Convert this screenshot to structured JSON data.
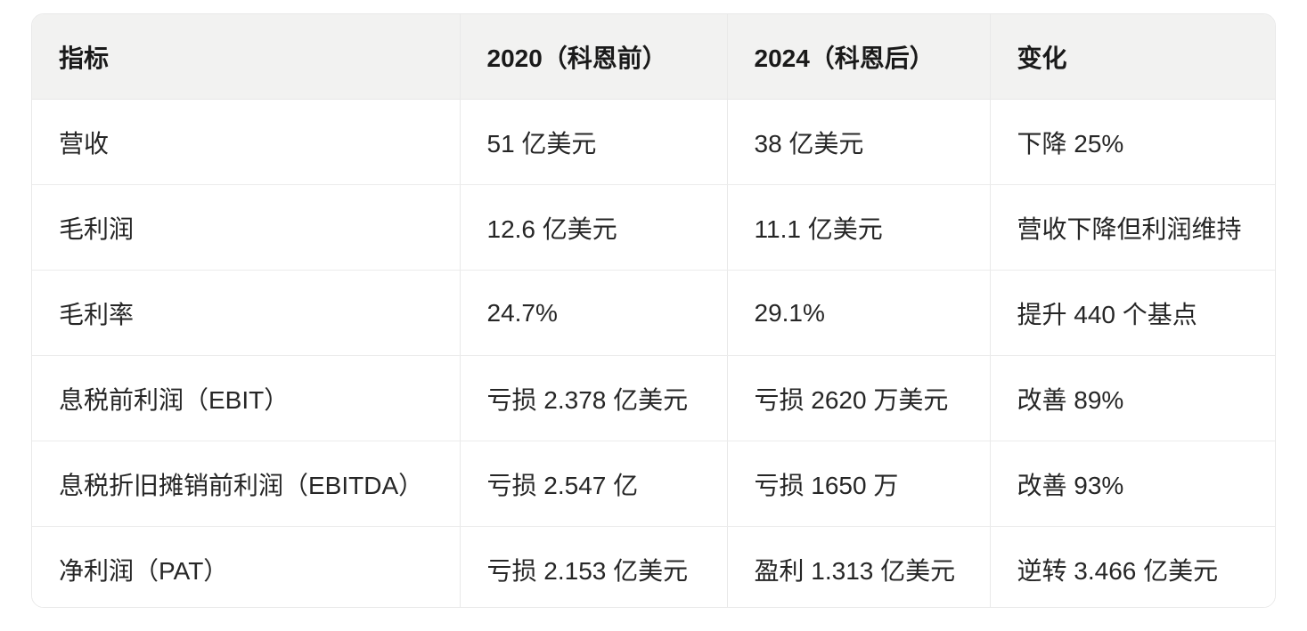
{
  "table": {
    "columns": [
      {
        "label": "指标"
      },
      {
        "label": "2020（科恩前）"
      },
      {
        "label": "2024（科恩后）"
      },
      {
        "label": "变化"
      }
    ],
    "rows": [
      {
        "metric": "营收",
        "y2020": "51 亿美元",
        "y2024": "38 亿美元",
        "change": "下降 25%"
      },
      {
        "metric": "毛利润",
        "y2020": "12.6 亿美元",
        "y2024": "11.1 亿美元",
        "change": "营收下降但利润维持"
      },
      {
        "metric": "毛利率",
        "y2020": "24.7%",
        "y2024": "29.1%",
        "change": "提升 440 个基点"
      },
      {
        "metric": "息税前利润（EBIT）",
        "y2020": "亏损 2.378 亿美元",
        "y2024": "亏损 2620 万美元",
        "change": "改善 89%"
      },
      {
        "metric": "息税折旧摊销前利润（EBITDA）",
        "y2020": "亏损 2.547 亿",
        "y2024": "亏损 1650 万",
        "change": "改善 93%"
      },
      {
        "metric": "净利润（PAT）",
        "y2020": "亏损 2.153 亿美元",
        "y2024": "盈利 1.313 亿美元",
        "change": "逆转 3.466 亿美元"
      }
    ]
  },
  "colors": {
    "header_background": "#f2f2f1",
    "row_background": "#ffffff",
    "border": "#e9e9e9",
    "header_text": "#1a1a1a",
    "body_text": "#262626"
  }
}
